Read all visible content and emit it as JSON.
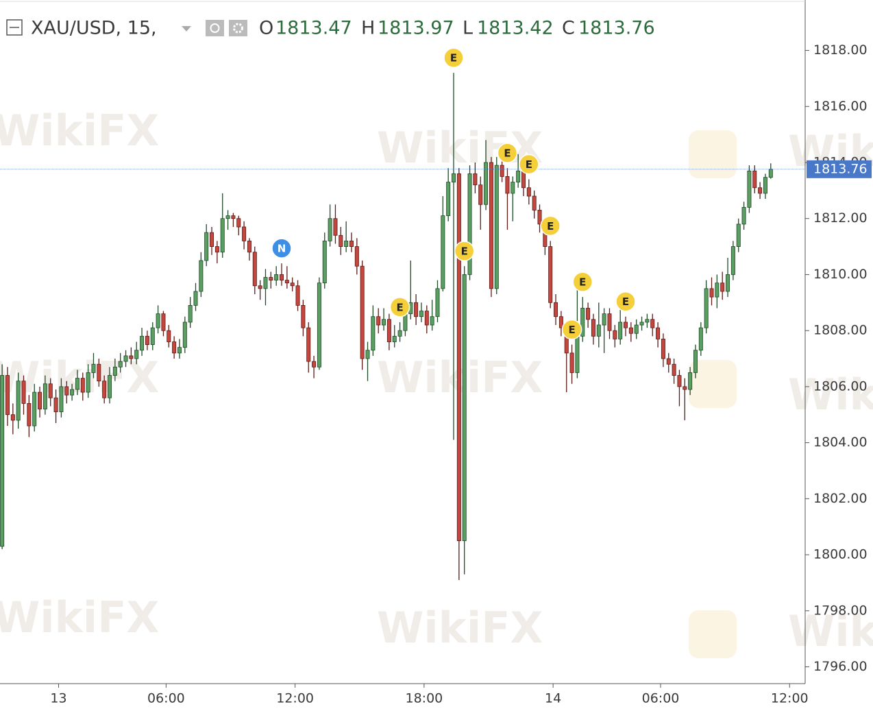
{
  "chart_data": {
    "type": "candlestick",
    "symbol": "XAU/USD, 15,",
    "ohlc_labels": [
      "O",
      "H",
      "L",
      "C"
    ],
    "watermark": "WikiFX",
    "up_color": "#5a9e62",
    "down_color": "#c4473f",
    "price_line_color": "#4a78c8",
    "ylim": [
      1795.4,
      1819.8
    ],
    "yticks": [
      {
        "value": 1796,
        "label": "1796.00"
      },
      {
        "value": 1798,
        "label": "1798.00"
      },
      {
        "value": 1800,
        "label": "1800.00"
      },
      {
        "value": 1802,
        "label": "1802.00"
      },
      {
        "value": 1804,
        "label": "1804.00"
      },
      {
        "value": 1806,
        "label": "1806.00"
      },
      {
        "value": 1808,
        "label": "1808.00"
      },
      {
        "value": 1810,
        "label": "1810.00"
      },
      {
        "value": 1812,
        "label": "1812.00"
      },
      {
        "value": 1814,
        "label": "1814.00"
      },
      {
        "value": 1816,
        "label": "1816.00"
      },
      {
        "value": 1818,
        "label": "1818.00"
      }
    ],
    "xticks": [
      {
        "value": 10.5,
        "label": "13"
      },
      {
        "value": 30.5,
        "label": "06:00"
      },
      {
        "value": 54.5,
        "label": "12:00"
      },
      {
        "value": 78.5,
        "label": "18:00"
      },
      {
        "value": 102.5,
        "label": "14"
      },
      {
        "value": 122.5,
        "label": "06:00"
      },
      {
        "value": 146.5,
        "label": "12:00"
      }
    ],
    "xlim": [
      -0.4,
      149.4
    ],
    "events": [
      {
        "label": "N",
        "candle": 52
      },
      {
        "label": "E",
        "candle": 74
      },
      {
        "label": "E",
        "candle": 84
      },
      {
        "label": "E",
        "candle": 86
      },
      {
        "label": "E",
        "candle": 94
      },
      {
        "label": "E",
        "candle": 98
      },
      {
        "label": "E",
        "candle": 102
      },
      {
        "label": "E",
        "candle": 106
      },
      {
        "label": "E",
        "candle": 108
      },
      {
        "label": "E",
        "candle": 116
      }
    ],
    "candles": [
      [
        1800.3,
        1806.8,
        1800.2,
        1806.4
      ],
      [
        1806.4,
        1806.7,
        1804.6,
        1805.0
      ],
      [
        1805.0,
        1805.4,
        1804.3,
        1804.8
      ],
      [
        1804.8,
        1806.5,
        1804.5,
        1806.2
      ],
      [
        1806.2,
        1806.4,
        1805.0,
        1805.4
      ],
      [
        1805.4,
        1805.7,
        1804.2,
        1804.6
      ],
      [
        1804.6,
        1806.1,
        1804.4,
        1805.8
      ],
      [
        1805.8,
        1806.0,
        1804.9,
        1805.2
      ],
      [
        1805.2,
        1806.4,
        1805.0,
        1806.1
      ],
      [
        1806.1,
        1806.3,
        1805.3,
        1805.6
      ],
      [
        1805.6,
        1805.9,
        1804.7,
        1805.1
      ],
      [
        1805.1,
        1806.3,
        1804.9,
        1806.0
      ],
      [
        1806.0,
        1806.2,
        1805.4,
        1805.7
      ],
      [
        1805.7,
        1806.1,
        1805.5,
        1805.9
      ],
      [
        1805.9,
        1806.6,
        1805.7,
        1806.3
      ],
      [
        1806.3,
        1806.5,
        1805.5,
        1805.8
      ],
      [
        1805.8,
        1806.8,
        1805.6,
        1806.5
      ],
      [
        1806.5,
        1807.2,
        1806.3,
        1806.8
      ],
      [
        1806.8,
        1807.0,
        1806.0,
        1806.2
      ],
      [
        1806.2,
        1806.4,
        1805.4,
        1805.6
      ],
      [
        1805.6,
        1806.7,
        1805.4,
        1806.4
      ],
      [
        1806.4,
        1807.0,
        1806.2,
        1806.7
      ],
      [
        1806.7,
        1807.2,
        1806.5,
        1806.9
      ],
      [
        1806.9,
        1807.3,
        1806.7,
        1807.1
      ],
      [
        1807.1,
        1807.4,
        1806.8,
        1807.0
      ],
      [
        1807.0,
        1807.6,
        1806.8,
        1807.3
      ],
      [
        1807.3,
        1808.1,
        1807.1,
        1807.8
      ],
      [
        1807.8,
        1808.0,
        1807.3,
        1807.5
      ],
      [
        1807.5,
        1808.3,
        1807.3,
        1808.1
      ],
      [
        1808.1,
        1808.9,
        1807.9,
        1808.6
      ],
      [
        1808.6,
        1808.7,
        1807.8,
        1808.0
      ],
      [
        1808.0,
        1808.2,
        1807.4,
        1807.6
      ],
      [
        1807.6,
        1807.8,
        1807.0,
        1807.2
      ],
      [
        1807.2,
        1807.7,
        1807.0,
        1807.4
      ],
      [
        1807.4,
        1808.5,
        1807.2,
        1808.3
      ],
      [
        1808.3,
        1809.2,
        1808.1,
        1808.9
      ],
      [
        1808.9,
        1809.7,
        1808.7,
        1809.4
      ],
      [
        1809.4,
        1810.8,
        1809.2,
        1810.5
      ],
      [
        1810.5,
        1811.8,
        1810.3,
        1811.5
      ],
      [
        1811.5,
        1811.7,
        1810.7,
        1811.0
      ],
      [
        1811.0,
        1811.2,
        1810.4,
        1810.8
      ],
      [
        1810.8,
        1812.9,
        1810.6,
        1812.0
      ],
      [
        1812.0,
        1812.3,
        1811.6,
        1812.1
      ],
      [
        1812.1,
        1812.2,
        1811.7,
        1812.0
      ],
      [
        1812.0,
        1812.1,
        1811.4,
        1811.7
      ],
      [
        1811.7,
        1811.9,
        1810.9,
        1811.2
      ],
      [
        1811.2,
        1811.3,
        1810.5,
        1810.8
      ],
      [
        1810.8,
        1811.0,
        1809.3,
        1809.6
      ],
      [
        1809.6,
        1809.8,
        1809.1,
        1809.5
      ],
      [
        1809.5,
        1810.2,
        1808.9,
        1809.9
      ],
      [
        1809.9,
        1810.1,
        1809.5,
        1809.8
      ],
      [
        1809.8,
        1810.3,
        1809.6,
        1810.0
      ],
      [
        1810.0,
        1810.4,
        1809.6,
        1809.8
      ],
      [
        1809.8,
        1810.3,
        1809.5,
        1809.7
      ],
      [
        1809.7,
        1809.9,
        1809.4,
        1809.6
      ],
      [
        1809.6,
        1809.8,
        1808.7,
        1808.9
      ],
      [
        1808.9,
        1809.1,
        1807.8,
        1808.1
      ],
      [
        1808.1,
        1808.3,
        1806.5,
        1806.9
      ],
      [
        1806.9,
        1807.1,
        1806.3,
        1806.7
      ],
      [
        1806.7,
        1809.9,
        1806.6,
        1809.7
      ],
      [
        1809.7,
        1811.5,
        1809.5,
        1811.2
      ],
      [
        1811.2,
        1812.5,
        1811.0,
        1812.0
      ],
      [
        1812.0,
        1812.5,
        1811.1,
        1811.4
      ],
      [
        1811.4,
        1811.7,
        1810.7,
        1811.0
      ],
      [
        1811.0,
        1811.9,
        1810.8,
        1811.2
      ],
      [
        1811.2,
        1811.5,
        1810.8,
        1811.0
      ],
      [
        1811.0,
        1811.3,
        1810.0,
        1810.3
      ],
      [
        1810.3,
        1810.5,
        1806.6,
        1807.0
      ],
      [
        1807.0,
        1807.6,
        1806.2,
        1807.3
      ],
      [
        1807.3,
        1808.9,
        1807.1,
        1808.5
      ],
      [
        1808.5,
        1808.8,
        1807.9,
        1808.2
      ],
      [
        1808.2,
        1808.8,
        1808.0,
        1808.4
      ],
      [
        1808.4,
        1808.6,
        1807.3,
        1807.6
      ],
      [
        1807.6,
        1808.2,
        1807.4,
        1807.8
      ],
      [
        1807.8,
        1808.3,
        1807.6,
        1808.0
      ],
      [
        1808.0,
        1808.9,
        1807.8,
        1808.6
      ],
      [
        1808.6,
        1810.5,
        1808.4,
        1809.0
      ],
      [
        1809.0,
        1809.3,
        1808.2,
        1808.5
      ],
      [
        1808.5,
        1809.0,
        1808.3,
        1808.7
      ],
      [
        1808.7,
        1808.9,
        1807.9,
        1808.2
      ],
      [
        1808.2,
        1809.1,
        1808.0,
        1808.5
      ],
      [
        1808.5,
        1809.8,
        1808.3,
        1809.5
      ],
      [
        1809.5,
        1812.8,
        1809.4,
        1812.1
      ],
      [
        1812.1,
        1813.8,
        1811.9,
        1813.3
      ],
      [
        1813.3,
        1817.2,
        1804.1,
        1813.6
      ],
      [
        1813.6,
        1813.8,
        1799.1,
        1800.5
      ],
      [
        1800.5,
        1810.3,
        1799.3,
        1810.0
      ],
      [
        1810.0,
        1813.9,
        1809.8,
        1813.6
      ],
      [
        1813.6,
        1814.0,
        1812.9,
        1813.2
      ],
      [
        1813.2,
        1813.5,
        1811.6,
        1812.5
      ],
      [
        1812.5,
        1814.8,
        1812.3,
        1814.0
      ],
      [
        1814.0,
        1814.2,
        1809.2,
        1809.5
      ],
      [
        1809.5,
        1814.2,
        1809.3,
        1813.9
      ],
      [
        1813.9,
        1814.6,
        1813.3,
        1813.5
      ],
      [
        1813.5,
        1813.8,
        1811.6,
        1812.9
      ],
      [
        1812.9,
        1813.5,
        1811.9,
        1813.3
      ],
      [
        1813.3,
        1814.3,
        1813.1,
        1813.7
      ],
      [
        1813.7,
        1814.0,
        1812.8,
        1813.1
      ],
      [
        1813.1,
        1813.4,
        1812.5,
        1812.8
      ],
      [
        1812.8,
        1813.0,
        1812.0,
        1812.3
      ],
      [
        1812.3,
        1812.5,
        1811.5,
        1811.8
      ],
      [
        1811.8,
        1812.0,
        1810.7,
        1811.0
      ],
      [
        1811.0,
        1811.2,
        1808.8,
        1809.0
      ],
      [
        1809.0,
        1809.3,
        1808.2,
        1808.5
      ],
      [
        1808.5,
        1808.7,
        1807.8,
        1808.1
      ],
      [
        1808.1,
        1808.3,
        1805.8,
        1807.2
      ],
      [
        1807.2,
        1807.5,
        1806.1,
        1806.5
      ],
      [
        1806.5,
        1809.5,
        1806.3,
        1807.8
      ],
      [
        1807.8,
        1809.2,
        1807.6,
        1808.8
      ],
      [
        1808.8,
        1809.0,
        1808.1,
        1808.4
      ],
      [
        1808.4,
        1808.6,
        1807.5,
        1807.8
      ],
      [
        1807.8,
        1809.0,
        1807.4,
        1808.2
      ],
      [
        1808.2,
        1808.8,
        1807.2,
        1808.6
      ],
      [
        1808.6,
        1808.8,
        1807.7,
        1808.0
      ],
      [
        1808.0,
        1808.2,
        1807.4,
        1807.7
      ],
      [
        1807.7,
        1809.1,
        1807.5,
        1808.3
      ],
      [
        1808.3,
        1808.5,
        1807.8,
        1808.1
      ],
      [
        1808.1,
        1808.3,
        1807.6,
        1807.9
      ],
      [
        1807.9,
        1808.4,
        1807.7,
        1808.2
      ],
      [
        1808.2,
        1808.5,
        1808.0,
        1808.3
      ],
      [
        1808.3,
        1808.6,
        1808.1,
        1808.4
      ],
      [
        1808.4,
        1808.6,
        1807.8,
        1808.1
      ],
      [
        1808.1,
        1808.3,
        1807.4,
        1807.7
      ],
      [
        1807.7,
        1807.9,
        1806.7,
        1807.0
      ],
      [
        1807.0,
        1807.2,
        1806.5,
        1806.8
      ],
      [
        1806.8,
        1807.0,
        1806.1,
        1806.4
      ],
      [
        1806.4,
        1806.6,
        1805.3,
        1806.0
      ],
      [
        1806.0,
        1806.3,
        1804.8,
        1805.9
      ],
      [
        1805.9,
        1806.7,
        1805.7,
        1806.5
      ],
      [
        1806.5,
        1807.5,
        1806.3,
        1807.3
      ],
      [
        1807.3,
        1808.3,
        1807.1,
        1808.1
      ],
      [
        1808.1,
        1809.8,
        1807.9,
        1809.5
      ],
      [
        1809.5,
        1809.9,
        1808.9,
        1809.2
      ],
      [
        1809.2,
        1810.0,
        1808.8,
        1809.7
      ],
      [
        1809.7,
        1810.1,
        1809.1,
        1809.4
      ],
      [
        1809.4,
        1810.6,
        1809.2,
        1810.0
      ],
      [
        1810.0,
        1811.2,
        1809.8,
        1811.0
      ],
      [
        1811.0,
        1812.0,
        1810.8,
        1811.8
      ],
      [
        1811.8,
        1812.6,
        1811.6,
        1812.4
      ],
      [
        1812.4,
        1813.9,
        1812.2,
        1813.7
      ],
      [
        1813.7,
        1813.9,
        1812.9,
        1813.1
      ],
      [
        1813.1,
        1813.3,
        1812.7,
        1812.9
      ],
      [
        1812.9,
        1813.6,
        1812.7,
        1813.47
      ],
      [
        1813.47,
        1813.97,
        1813.42,
        1813.76
      ]
    ]
  }
}
